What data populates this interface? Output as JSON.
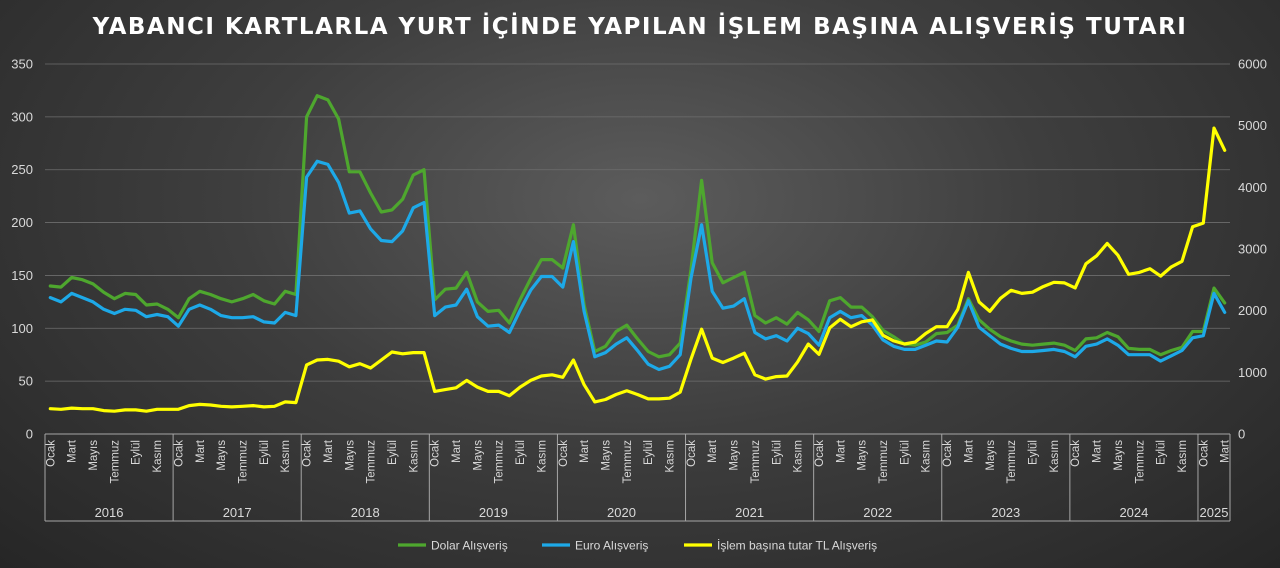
{
  "chart_data": {
    "type": "line",
    "title": "YABANCI KARTLARLA YURT İÇİNDE YAPILAN İŞLEM BAŞINA ALIŞVERİŞ TUTARI",
    "ylim_left": [
      0,
      350
    ],
    "yticks_left": [
      0,
      50,
      100,
      150,
      200,
      250,
      300,
      350
    ],
    "ylim_right": [
      0,
      6000
    ],
    "yticks_right": [
      0,
      1000,
      2000,
      3000,
      4000,
      5000,
      6000
    ],
    "grid": true,
    "legend_position": "bottom",
    "month_labels": [
      "Ocak",
      "Mart",
      "Mayıs",
      "Temmuz",
      "Eylül",
      "Kasım"
    ],
    "month_labels_2025": [
      "Ocak",
      "Mart"
    ],
    "years": [
      "2016",
      "2017",
      "2018",
      "2019",
      "2020",
      "2021",
      "2022",
      "2023",
      "2024",
      "2025"
    ],
    "series": [
      {
        "name": "Dolar Alışveriş",
        "color": "#4ea72e",
        "axis": "left",
        "values": [
          140,
          139,
          148,
          146,
          142,
          134,
          128,
          133,
          132,
          122,
          123,
          118,
          110,
          128,
          135,
          132,
          128,
          125,
          128,
          132,
          126,
          123,
          135,
          132,
          300,
          320,
          316,
          298,
          248,
          248,
          228,
          210,
          212,
          222,
          245,
          250,
          127,
          137,
          138,
          153,
          125,
          116,
          117,
          105,
          127,
          147,
          165,
          165,
          157,
          198,
          122,
          78,
          83,
          97,
          103,
          90,
          78,
          73,
          75,
          86,
          155,
          240,
          162,
          143,
          148,
          153,
          112,
          105,
          110,
          104,
          115,
          108,
          97,
          126,
          129,
          120,
          120,
          111,
          98,
          92,
          85,
          84,
          87,
          95,
          96,
          103,
          128,
          108,
          99,
          92,
          88,
          85,
          84,
          85,
          86,
          84,
          79,
          90,
          91,
          96,
          92,
          81,
          80,
          80,
          75,
          79,
          82,
          97,
          97,
          138,
          124
        ]
      },
      {
        "name": "Euro Alışveriş",
        "color": "#1da9e8",
        "axis": "left",
        "values": [
          129,
          125,
          133,
          129,
          125,
          118,
          114,
          118,
          117,
          111,
          113,
          111,
          102,
          118,
          122,
          118,
          112,
          110,
          110,
          111,
          106,
          105,
          115,
          112,
          243,
          258,
          255,
          238,
          209,
          211,
          194,
          183,
          182,
          192,
          214,
          219,
          112,
          120,
          122,
          137,
          111,
          102,
          103,
          96,
          117,
          136,
          149,
          149,
          139,
          182,
          116,
          73,
          77,
          85,
          91,
          79,
          66,
          61,
          64,
          75,
          147,
          198,
          135,
          119,
          121,
          128,
          96,
          90,
          93,
          88,
          100,
          95,
          84,
          110,
          116,
          110,
          112,
          103,
          89,
          83,
          80,
          80,
          84,
          88,
          87,
          101,
          126,
          101,
          93,
          85,
          81,
          78,
          78,
          79,
          80,
          78,
          73,
          83,
          85,
          90,
          84,
          75,
          75,
          75,
          69,
          74,
          79,
          91,
          93,
          133,
          115
        ]
      },
      {
        "name": "İşlem başına tutar TL Alışveriş",
        "color": "#ffff00",
        "axis": "right",
        "values": [
          410,
          400,
          420,
          410,
          410,
          380,
          370,
          390,
          390,
          370,
          400,
          400,
          400,
          460,
          480,
          470,
          450,
          440,
          450,
          460,
          440,
          450,
          520,
          510,
          1120,
          1200,
          1210,
          1180,
          1090,
          1140,
          1070,
          1200,
          1330,
          1300,
          1320,
          1320,
          690,
          720,
          750,
          870,
          760,
          690,
          690,
          620,
          760,
          870,
          940,
          960,
          920,
          1200,
          800,
          520,
          560,
          640,
          700,
          640,
          570,
          570,
          580,
          680,
          1210,
          1700,
          1230,
          1160,
          1230,
          1310,
          960,
          890,
          930,
          940,
          1170,
          1460,
          1290,
          1720,
          1860,
          1740,
          1820,
          1850,
          1600,
          1510,
          1460,
          1490,
          1630,
          1740,
          1740,
          2020,
          2620,
          2140,
          1990,
          2200,
          2330,
          2280,
          2300,
          2390,
          2460,
          2450,
          2370,
          2760,
          2890,
          3090,
          2900,
          2590,
          2620,
          2680,
          2560,
          2710,
          2800,
          3360,
          3420,
          4960,
          4600
        ]
      }
    ]
  }
}
